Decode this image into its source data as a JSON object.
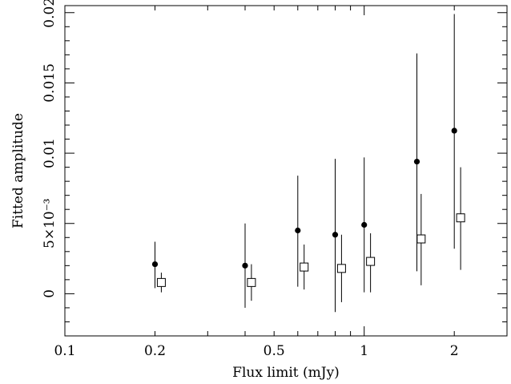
{
  "chart_data": {
    "type": "scatter",
    "title": "",
    "xlabel": "Flux limit (mJy)",
    "ylabel": "Fitted amplitude",
    "xscale": "log",
    "xlim": [
      0.1,
      3.0
    ],
    "ylim": [
      -0.003,
      0.0205
    ],
    "x_tick_labels": [
      {
        "value": 0.1,
        "label": "0.1"
      },
      {
        "value": 0.2,
        "label": "0.2"
      },
      {
        "value": 0.5,
        "label": "0.5"
      },
      {
        "value": 1,
        "label": "1"
      },
      {
        "value": 2,
        "label": "2"
      }
    ],
    "y_tick_labels": [
      {
        "value": 0,
        "label": "0"
      },
      {
        "value": 0.005,
        "label": "5×10⁻³"
      },
      {
        "value": 0.01,
        "label": "0.01"
      },
      {
        "value": 0.015,
        "label": "0.015"
      },
      {
        "value": 0.02,
        "label": "0.02"
      }
    ],
    "grid": false,
    "legend": "none",
    "series": [
      {
        "marker": "filled-circle",
        "points": [
          {
            "x": 0.2,
            "y": 0.0021,
            "y_low": 0.0004,
            "y_high": 0.0037
          },
          {
            "x": 0.4,
            "y": 0.002,
            "y_low": -0.001,
            "y_high": 0.005
          },
          {
            "x": 0.6,
            "y": 0.0045,
            "y_low": 0.0005,
            "y_high": 0.0084
          },
          {
            "x": 0.8,
            "y": 0.0042,
            "y_low": -0.0013,
            "y_high": 0.0096
          },
          {
            "x": 1.0,
            "y": 0.0049,
            "y_low": 0.0001,
            "y_high": 0.0097
          },
          {
            "x": 1.5,
            "y": 0.0094,
            "y_low": 0.0016,
            "y_high": 0.0171
          },
          {
            "x": 2.0,
            "y": 0.0116,
            "y_low": 0.0032,
            "y_high": 0.0199
          }
        ]
      },
      {
        "marker": "open-square",
        "points": [
          {
            "x": 0.21,
            "y": 0.0008,
            "y_low": 0.0001,
            "y_high": 0.0015
          },
          {
            "x": 0.42,
            "y": 0.0008,
            "y_low": -0.0005,
            "y_high": 0.0021
          },
          {
            "x": 0.63,
            "y": 0.0019,
            "y_low": 0.0003,
            "y_high": 0.0035
          },
          {
            "x": 0.84,
            "y": 0.0018,
            "y_low": -0.0006,
            "y_high": 0.0042
          },
          {
            "x": 1.05,
            "y": 0.0023,
            "y_low": 0.0001,
            "y_high": 0.0043
          },
          {
            "x": 1.55,
            "y": 0.0039,
            "y_low": 0.0006,
            "y_high": 0.0071
          },
          {
            "x": 2.1,
            "y": 0.0054,
            "y_low": 0.0017,
            "y_high": 0.009
          }
        ]
      }
    ]
  }
}
